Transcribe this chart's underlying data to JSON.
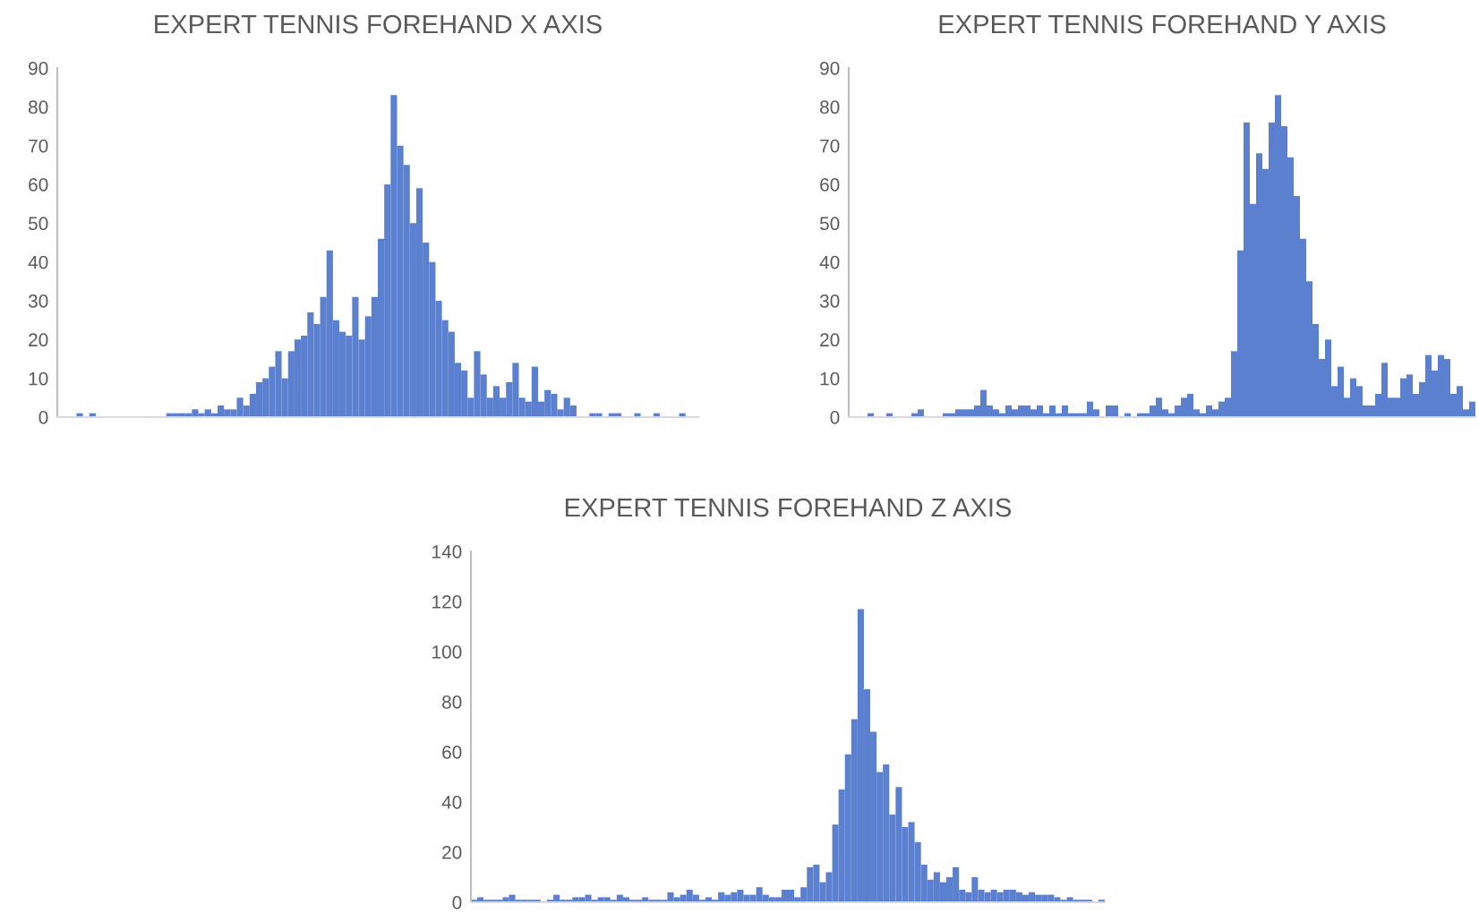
{
  "chart_data": [
    {
      "type": "bar",
      "title": "EXPERT TENNIS FOREHAND X AXIS",
      "color": "#5b80d0",
      "grid": false,
      "ylim": [
        0,
        90
      ],
      "yticks": [
        0,
        10,
        20,
        30,
        40,
        50,
        60,
        70,
        80,
        90
      ],
      "categories": [
        null,
        null,
        null,
        null,
        null,
        null,
        null,
        null,
        null,
        null,
        null,
        null,
        null,
        null,
        null,
        null,
        null,
        null,
        null,
        null,
        null,
        null,
        null,
        null,
        null,
        null,
        null,
        null,
        null,
        null,
        null,
        null,
        null,
        null,
        null,
        null,
        null,
        null,
        null,
        null,
        null,
        null,
        null,
        null,
        null,
        null,
        null,
        null,
        null,
        null,
        null,
        null,
        null,
        null,
        null,
        null,
        null,
        null,
        null,
        null,
        null,
        null,
        null,
        null,
        null,
        null,
        null,
        null,
        null,
        null,
        null,
        null,
        null,
        null,
        null,
        null,
        null,
        null,
        null,
        null,
        null,
        null,
        null,
        null,
        null,
        null,
        null,
        null,
        null,
        null,
        null,
        null,
        null,
        null,
        null,
        null,
        null,
        null,
        null,
        null
      ],
      "values": [
        0,
        0,
        0,
        1,
        0,
        1,
        0,
        0,
        0,
        0,
        0,
        0,
        0,
        0,
        0,
        0,
        0,
        1,
        1,
        1,
        1,
        2,
        1,
        2,
        1,
        3,
        2,
        2,
        5,
        3,
        6,
        9,
        10,
        13,
        17,
        10,
        17,
        20,
        21,
        27,
        24,
        31,
        43,
        25,
        22,
        21,
        31,
        20,
        26,
        31,
        46,
        60,
        83,
        70,
        65,
        50,
        59,
        45,
        40,
        30,
        25,
        22,
        14,
        12,
        5,
        17,
        11,
        5,
        8,
        5,
        9,
        14,
        5,
        4,
        13,
        4,
        7,
        6,
        2,
        5,
        3,
        0,
        0,
        1,
        1,
        0,
        1,
        1,
        0,
        0,
        1,
        0,
        0,
        1,
        0,
        0,
        0,
        1,
        0,
        0
      ]
    },
    {
      "type": "bar",
      "title": "EXPERT TENNIS FOREHAND Y AXIS",
      "color": "#5b80d0",
      "grid": false,
      "ylim": [
        0,
        90
      ],
      "yticks": [
        0,
        10,
        20,
        30,
        40,
        50,
        60,
        70,
        80,
        90
      ],
      "categories": [
        null,
        null,
        null,
        null,
        null,
        null,
        null,
        null,
        null,
        null,
        null,
        null,
        null,
        null,
        null,
        null,
        null,
        null,
        null,
        null,
        null,
        null,
        null,
        null,
        null,
        null,
        null,
        null,
        null,
        null,
        null,
        null,
        null,
        null,
        null,
        null,
        null,
        null,
        null,
        null,
        null,
        null,
        null,
        null,
        null,
        null,
        null,
        null,
        null,
        null,
        null,
        null,
        null,
        null,
        null,
        null,
        null,
        null,
        null,
        null,
        null,
        null,
        null,
        null,
        null,
        null,
        null,
        null,
        null,
        null,
        null,
        null,
        null,
        null,
        null,
        null,
        null,
        null,
        null,
        null,
        null,
        null,
        null,
        null,
        null,
        null,
        null,
        null,
        null,
        null,
        null,
        null,
        null,
        null,
        null,
        null,
        null,
        null,
        null,
        null
      ],
      "values": [
        0,
        0,
        0,
        1,
        0,
        0,
        1,
        0,
        0,
        0,
        1,
        2,
        0,
        0,
        0,
        1,
        1,
        2,
        2,
        2,
        3,
        7,
        3,
        2,
        1,
        3,
        2,
        3,
        3,
        2,
        3,
        1,
        3,
        1,
        3,
        1,
        1,
        1,
        4,
        2,
        0,
        3,
        3,
        0,
        1,
        0,
        1,
        1,
        3,
        5,
        2,
        1,
        3,
        5,
        6,
        2,
        1,
        3,
        2,
        4,
        5,
        17,
        43,
        76,
        55,
        68,
        64,
        76,
        83,
        75,
        67,
        57,
        46,
        35,
        24,
        15,
        20,
        8,
        13,
        5,
        10,
        8,
        3,
        3,
        6,
        14,
        5,
        5,
        10,
        11,
        6,
        9,
        16,
        12,
        16,
        15,
        6,
        8,
        2,
        4
      ]
    },
    {
      "type": "bar",
      "title": "EXPERT TENNIS FOREHAND Z AXIS",
      "color": "#5b80d0",
      "grid": false,
      "ylim": [
        0,
        140
      ],
      "yticks": [
        0,
        20,
        40,
        60,
        80,
        100,
        120,
        140
      ],
      "categories": [
        null,
        null,
        null,
        null,
        null,
        null,
        null,
        null,
        null,
        null,
        null,
        null,
        null,
        null,
        null,
        null,
        null,
        null,
        null,
        null,
        null,
        null,
        null,
        null,
        null,
        null,
        null,
        null,
        null,
        null,
        null,
        null,
        null,
        null,
        null,
        null,
        null,
        null,
        null,
        null,
        null,
        null,
        null,
        null,
        null,
        null,
        null,
        null,
        null,
        null,
        null,
        null,
        null,
        null,
        null,
        null,
        null,
        null,
        null,
        null,
        null,
        null,
        null,
        null,
        null,
        null,
        null,
        null,
        null,
        null,
        null,
        null,
        null,
        null,
        null,
        null,
        null,
        null,
        null,
        null,
        null,
        null,
        null,
        null,
        null,
        null,
        null,
        null,
        null,
        null,
        null,
        null,
        null,
        null,
        null,
        null,
        null,
        null,
        null,
        null
      ],
      "values": [
        1,
        2,
        1,
        1,
        1,
        2,
        3,
        1,
        1,
        1,
        1,
        0,
        1,
        3,
        1,
        1,
        2,
        2,
        3,
        1,
        2,
        2,
        1,
        3,
        2,
        1,
        1,
        2,
        1,
        1,
        1,
        4,
        2,
        3,
        5,
        3,
        1,
        2,
        1,
        4,
        3,
        4,
        5,
        3,
        3,
        6,
        3,
        2,
        2,
        5,
        5,
        2,
        6,
        14,
        15,
        8,
        12,
        31,
        45,
        59,
        73,
        117,
        85,
        68,
        52,
        55,
        35,
        46,
        30,
        32,
        24,
        15,
        9,
        12,
        8,
        10,
        14,
        5,
        4,
        10,
        5,
        4,
        5,
        4,
        5,
        5,
        4,
        3,
        4,
        3,
        3,
        3,
        2,
        1,
        2,
        1,
        1,
        1,
        0,
        1
      ]
    }
  ]
}
